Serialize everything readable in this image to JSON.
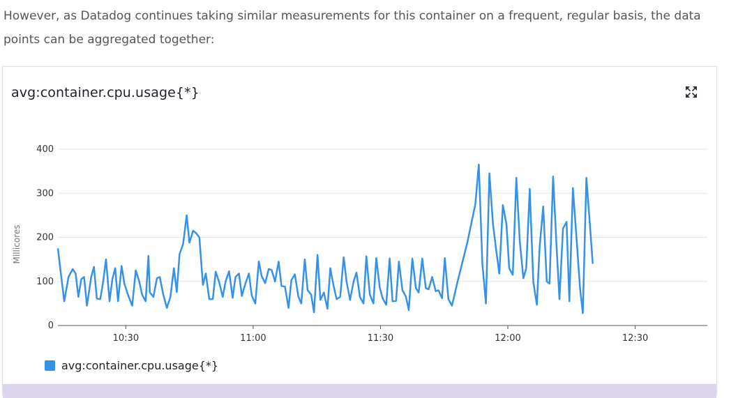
{
  "intro_text": "However, as Datadog continues taking similar measurements for this container on a frequent, regular basis, the data points can be aggregated together:",
  "widget": {
    "title": "avg:container.cpu.usage{*}",
    "expand_icon": "expand-arrows-icon",
    "legend_label": "avg:container.cpu.usage{*}"
  },
  "colors": {
    "series": "#3592e6",
    "legend_swatch": "#3592e6",
    "footer": "#ddd5ec"
  },
  "chart_data": {
    "type": "line",
    "ylabel": "Millicores",
    "xlabel": "",
    "ylim": [
      0,
      400
    ],
    "yticks": [
      0,
      100,
      200,
      300,
      400
    ],
    "xlim": [
      "10:14",
      "12:47"
    ],
    "xticks": [
      {
        "label": "10:30",
        "x": "10:30"
      },
      {
        "label": "11:00",
        "x": "11:00"
      },
      {
        "label": "11:30",
        "x": "11:30"
      },
      {
        "label": "12:00",
        "x": "12:00"
      },
      {
        "label": "12:30",
        "x": "12:30"
      }
    ],
    "grid": true,
    "legend": "bottom-left",
    "series": [
      {
        "name": "avg:container.cpu.usage{*}",
        "points": [
          [
            "10:14:00",
            175
          ],
          [
            "10:14:40",
            120
          ],
          [
            "10:15:30",
            55
          ],
          [
            "10:16:30",
            110
          ],
          [
            "10:17:30",
            128
          ],
          [
            "10:18:10",
            118
          ],
          [
            "10:18:50",
            65
          ],
          [
            "10:19:30",
            105
          ],
          [
            "10:20:10",
            110
          ],
          [
            "10:20:50",
            45
          ],
          [
            "10:21:50",
            110
          ],
          [
            "10:22:30",
            133
          ],
          [
            "10:23:10",
            61
          ],
          [
            "10:24:00",
            60
          ],
          [
            "10:24:40",
            100
          ],
          [
            "10:25:20",
            150
          ],
          [
            "10:26:10",
            55
          ],
          [
            "10:26:50",
            105
          ],
          [
            "10:27:30",
            130
          ],
          [
            "10:28:10",
            55
          ],
          [
            "10:29:00",
            135
          ],
          [
            "10:29:40",
            95
          ],
          [
            "10:30:30",
            70
          ],
          [
            "10:31:30",
            45
          ],
          [
            "10:32:20",
            125
          ],
          [
            "10:33:10",
            100
          ],
          [
            "10:33:50",
            70
          ],
          [
            "10:34:40",
            55
          ],
          [
            "10:35:20",
            158
          ],
          [
            "10:35:40",
            75
          ],
          [
            "10:36:30",
            65
          ],
          [
            "10:37:20",
            107
          ],
          [
            "10:38:00",
            110
          ],
          [
            "10:38:50",
            70
          ],
          [
            "10:39:40",
            40
          ],
          [
            "10:40:30",
            65
          ],
          [
            "10:41:20",
            130
          ],
          [
            "10:42:00",
            76
          ],
          [
            "10:42:40",
            162
          ],
          [
            "10:43:30",
            185
          ],
          [
            "10:44:20",
            250
          ],
          [
            "10:45:00",
            188
          ],
          [
            "10:45:50",
            215
          ],
          [
            "10:46:30",
            210
          ],
          [
            "10:47:20",
            200
          ],
          [
            "10:48:10",
            92
          ],
          [
            "10:48:50",
            118
          ],
          [
            "10:49:40",
            60
          ],
          [
            "10:50:30",
            60
          ],
          [
            "10:51:10",
            122
          ],
          [
            "10:52:00",
            98
          ],
          [
            "10:52:50",
            65
          ],
          [
            "10:53:30",
            100
          ],
          [
            "10:54:20",
            123
          ],
          [
            "10:55:10",
            63
          ],
          [
            "10:55:50",
            110
          ],
          [
            "10:56:40",
            118
          ],
          [
            "10:57:20",
            67
          ],
          [
            "10:58:10",
            95
          ],
          [
            "10:59:00",
            118
          ],
          [
            "10:59:40",
            68
          ],
          [
            "11:00:30",
            50
          ],
          [
            "11:01:20",
            145
          ],
          [
            "11:02:00",
            112
          ],
          [
            "11:02:50",
            96
          ],
          [
            "11:03:40",
            128
          ],
          [
            "11:04:20",
            126
          ],
          [
            "11:05:10",
            100
          ],
          [
            "11:06:00",
            145
          ],
          [
            "11:06:40",
            90
          ],
          [
            "11:07:30",
            88
          ],
          [
            "11:08:20",
            40
          ],
          [
            "11:09:00",
            103
          ],
          [
            "11:09:50",
            116
          ],
          [
            "11:10:40",
            65
          ],
          [
            "11:11:20",
            50
          ],
          [
            "11:12:10",
            150
          ],
          [
            "11:12:50",
            80
          ],
          [
            "11:13:40",
            70
          ],
          [
            "11:14:20",
            30
          ],
          [
            "11:15:10",
            160
          ],
          [
            "11:15:50",
            58
          ],
          [
            "11:16:40",
            75
          ],
          [
            "11:17:30",
            38
          ],
          [
            "11:18:10",
            130
          ],
          [
            "11:19:00",
            88
          ],
          [
            "11:19:40",
            60
          ],
          [
            "11:20:30",
            65
          ],
          [
            "11:21:20",
            155
          ],
          [
            "11:22:00",
            100
          ],
          [
            "11:22:50",
            58
          ],
          [
            "11:23:40",
            100
          ],
          [
            "11:24:20",
            120
          ],
          [
            "11:25:10",
            65
          ],
          [
            "11:26:00",
            50
          ],
          [
            "11:26:40",
            157
          ],
          [
            "11:27:30",
            70
          ],
          [
            "11:28:20",
            50
          ],
          [
            "11:29:00",
            153
          ],
          [
            "11:29:50",
            86
          ],
          [
            "11:30:30",
            62
          ],
          [
            "11:31:20",
            47
          ],
          [
            "11:32:10",
            152
          ],
          [
            "11:32:50",
            55
          ],
          [
            "11:33:40",
            56
          ],
          [
            "11:34:20",
            145
          ],
          [
            "11:35:10",
            80
          ],
          [
            "11:36:00",
            65
          ],
          [
            "11:36:40",
            35
          ],
          [
            "11:37:30",
            152
          ],
          [
            "11:38:20",
            85
          ],
          [
            "11:39:00",
            75
          ],
          [
            "11:39:50",
            152
          ],
          [
            "11:40:40",
            85
          ],
          [
            "11:41:20",
            82
          ],
          [
            "11:42:10",
            110
          ],
          [
            "11:43:00",
            78
          ],
          [
            "11:43:40",
            80
          ],
          [
            "11:44:30",
            62
          ],
          [
            "11:45:10",
            153
          ],
          [
            "11:46:00",
            60
          ],
          [
            "11:46:50",
            45
          ],
          [
            "11:48:10",
            100
          ],
          [
            "11:50:30",
            190
          ],
          [
            "11:52:20",
            275
          ],
          [
            "11:53:10",
            365
          ],
          [
            "11:54:00",
            140
          ],
          [
            "11:54:50",
            50
          ],
          [
            "11:55:40",
            345
          ],
          [
            "11:56:30",
            230
          ],
          [
            "11:57:20",
            165
          ],
          [
            "11:58:00",
            118
          ],
          [
            "11:58:50",
            273
          ],
          [
            "11:59:40",
            230
          ],
          [
            "12:00:20",
            130
          ],
          [
            "12:01:10",
            115
          ],
          [
            "12:02:00",
            335
          ],
          [
            "12:02:50",
            190
          ],
          [
            "12:03:40",
            107
          ],
          [
            "12:04:20",
            130
          ],
          [
            "12:05:10",
            310
          ],
          [
            "12:06:00",
            100
          ],
          [
            "12:06:50",
            47
          ],
          [
            "12:07:30",
            178
          ],
          [
            "12:08:20",
            270
          ],
          [
            "12:09:10",
            100
          ],
          [
            "12:09:50",
            95
          ],
          [
            "12:10:40",
            338
          ],
          [
            "12:11:30",
            175
          ],
          [
            "12:12:10",
            60
          ],
          [
            "12:13:00",
            220
          ],
          [
            "12:13:50",
            235
          ],
          [
            "12:14:30",
            55
          ],
          [
            "12:15:20",
            312
          ],
          [
            "12:16:10",
            200
          ],
          [
            "12:17:00",
            85
          ],
          [
            "12:17:40",
            28
          ],
          [
            "12:18:30",
            335
          ],
          [
            "12:19:20",
            230
          ],
          [
            "12:20:00",
            140
          ]
        ]
      }
    ]
  }
}
